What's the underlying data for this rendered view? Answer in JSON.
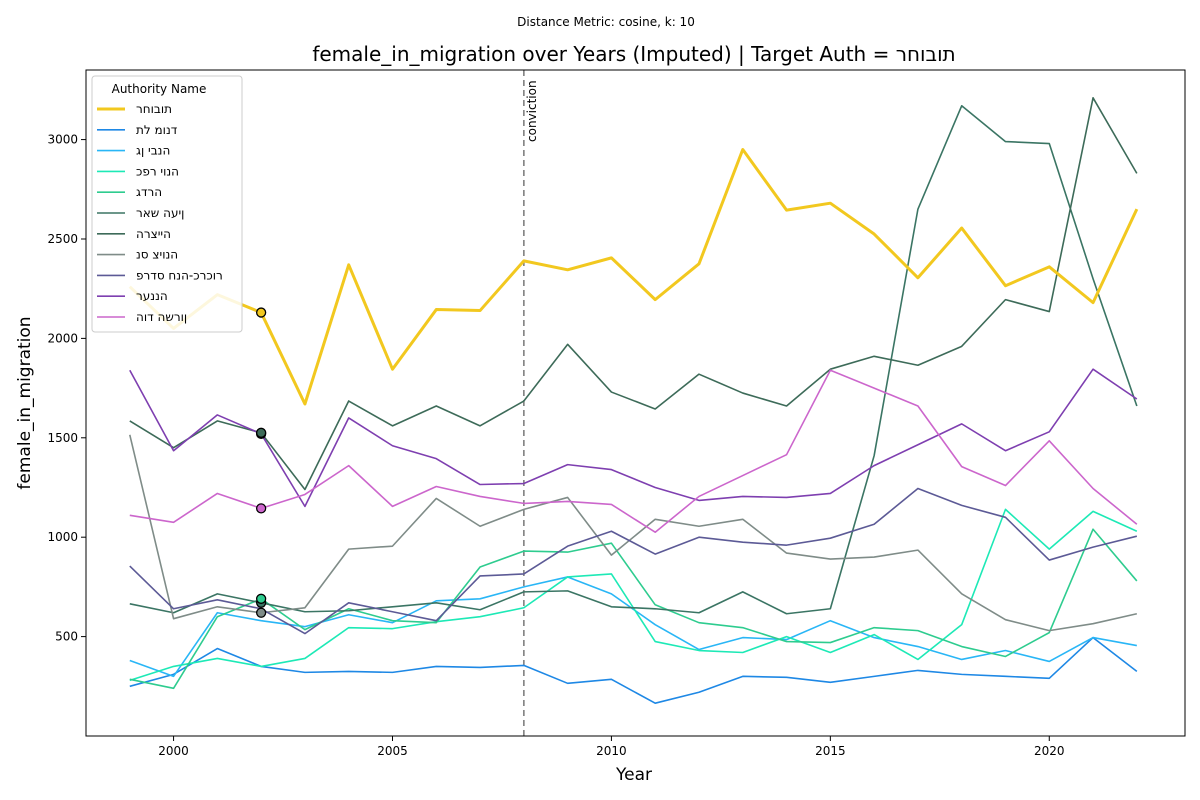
{
  "chart_data": {
    "type": "line",
    "suptitle": "Distance Metric: cosine, k: 10",
    "title": "female_in_migration over Years (Imputed) | Target Auth = תובוחר",
    "xlabel": "Year",
    "ylabel": "female_in_migration",
    "xlim": [
      1998.0,
      2023.1
    ],
    "ylim": [
      0,
      3350
    ],
    "xticks": [
      2000,
      2005,
      2010,
      2015,
      2020
    ],
    "yticks": [
      500,
      1000,
      1500,
      2000,
      2500,
      3000
    ],
    "grid": false,
    "legend": {
      "title": "Authority Name",
      "placement": "top-left"
    },
    "vline": {
      "x": 2008,
      "label": "conviction",
      "color": "#808080"
    },
    "x": [
      1999,
      2000,
      2001,
      2002,
      2003,
      2004,
      2005,
      2006,
      2007,
      2008,
      2009,
      2010,
      2011,
      2012,
      2013,
      2014,
      2015,
      2016,
      2017,
      2018,
      2019,
      2020,
      2021,
      2022
    ],
    "series": [
      {
        "name": "תובוחר",
        "color": "#f2c81f",
        "width": 3,
        "values": [
          2260,
          2050,
          2220,
          2130,
          1670,
          2370,
          1845,
          2145,
          2140,
          2390,
          2345,
          2405,
          2195,
          2375,
          2950,
          2645,
          2680,
          2525,
          2305,
          2555,
          2265,
          2360,
          2180,
          2650
        ]
      },
      {
        "name": "דנומ לת",
        "color": "#1e88e5",
        "width": 1.6,
        "values": [
          250,
          310,
          440,
          350,
          320,
          325,
          320,
          350,
          345,
          355,
          265,
          285,
          165,
          220,
          300,
          295,
          270,
          300,
          330,
          310,
          300,
          290,
          495,
          325
        ]
      },
      {
        "name": "הנבי ןג",
        "color": "#29b6f6",
        "width": 1.6,
        "values": [
          380,
          300,
          620,
          580,
          550,
          610,
          570,
          680,
          690,
          750,
          800,
          715,
          560,
          435,
          495,
          485,
          580,
          495,
          450,
          385,
          430,
          375,
          495,
          455
        ]
      },
      {
        "name": "הנוי רפכ",
        "color": "#1de9b6",
        "width": 1.6,
        "values": [
          280,
          350,
          390,
          350,
          390,
          545,
          540,
          575,
          600,
          645,
          800,
          815,
          475,
          430,
          420,
          500,
          420,
          510,
          385,
          560,
          1140,
          940,
          1130,
          1030
        ]
      },
      {
        "name": "הרדג",
        "color": "#2ecc8f",
        "width": 1.6,
        "values": [
          285,
          240,
          600,
          690,
          535,
          640,
          580,
          570,
          850,
          930,
          925,
          970,
          660,
          570,
          545,
          475,
          470,
          545,
          530,
          450,
          400,
          520,
          1040,
          780
        ]
      },
      {
        "name": "ןיעה שאר",
        "color": "#3b7564",
        "width": 1.6,
        "values": [
          665,
          620,
          715,
          670,
          625,
          630,
          650,
          670,
          635,
          725,
          730,
          650,
          640,
          620,
          725,
          615,
          640,
          1410,
          2650,
          3170,
          2990,
          2980,
          2300,
          1660
        ]
      },
      {
        "name": "הייצרה",
        "color": "#3d6b59",
        "width": 1.6,
        "values": [
          1585,
          1450,
          1585,
          1525,
          1240,
          1685,
          1560,
          1660,
          1560,
          1685,
          1970,
          1730,
          1645,
          1820,
          1725,
          1660,
          1845,
          1910,
          1865,
          1960,
          2195,
          2135,
          3210,
          2830
        ]
      },
      {
        "name": "הנויצ סנ",
        "color": "#7f8c88",
        "width": 1.6,
        "values": [
          1515,
          590,
          650,
          620,
          645,
          940,
          955,
          1195,
          1055,
          1140,
          1200,
          910,
          1090,
          1055,
          1090,
          920,
          890,
          900,
          935,
          715,
          585,
          530,
          565,
          615
        ]
      },
      {
        "name": "רוכרכ-הנח סדרפ",
        "color": "#5c5a96",
        "width": 1.6,
        "values": [
          855,
          640,
          685,
          640,
          515,
          670,
          625,
          580,
          805,
          815,
          955,
          1030,
          915,
          1000,
          975,
          960,
          995,
          1065,
          1245,
          1160,
          1100,
          885,
          950,
          1005
        ]
      },
      {
        "name": "הננער",
        "color": "#7e3fb0",
        "width": 1.6,
        "values": [
          1840,
          1435,
          1615,
          1520,
          1155,
          1600,
          1460,
          1395,
          1265,
          1270,
          1365,
          1340,
          1250,
          1185,
          1205,
          1200,
          1220,
          1360,
          1465,
          1570,
          1435,
          1530,
          1845,
          1695
        ]
      },
      {
        "name": "ןורשה דוה",
        "color": "#cc66cc",
        "width": 1.6,
        "values": [
          1110,
          1075,
          1220,
          1145,
          1215,
          1360,
          1155,
          1255,
          1205,
          1170,
          1180,
          1165,
          1025,
          1205,
          1310,
          1415,
          1840,
          1750,
          1660,
          1355,
          1260,
          1485,
          1245,
          1065
        ]
      }
    ],
    "highlight_points": [
      {
        "x": 2002,
        "y": 2130,
        "color": "#f2c81f"
      },
      {
        "x": 2002,
        "y": 1520,
        "color": "#7e3fb0"
      },
      {
        "x": 2002,
        "y": 1525,
        "color": "#3d6b59"
      },
      {
        "x": 2002,
        "y": 1145,
        "color": "#cc66cc"
      },
      {
        "x": 2002,
        "y": 670,
        "color": "#3b7564"
      },
      {
        "x": 2002,
        "y": 690,
        "color": "#2ecc8f"
      },
      {
        "x": 2002,
        "y": 620,
        "color": "#7f8c88"
      }
    ]
  }
}
